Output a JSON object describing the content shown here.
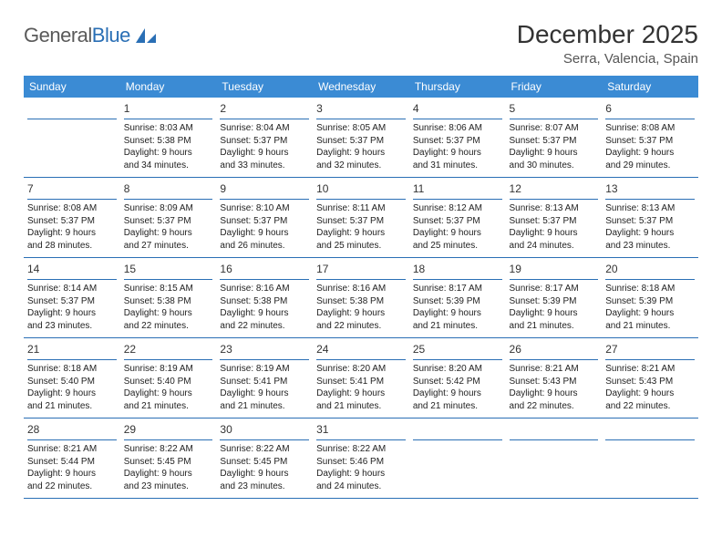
{
  "logo": {
    "text_left": "General",
    "text_right": "Blue",
    "text_color_left": "#5a5a5a",
    "text_color_right": "#2a6fb5",
    "shape_color": "#2a6fb5"
  },
  "header": {
    "month_title": "December 2025",
    "location": "Serra, Valencia, Spain"
  },
  "styling": {
    "header_bg": "#3b8bd4",
    "header_fg": "#ffffff",
    "rule_color": "#2a6fb5",
    "body_font_size": 10,
    "daynum_font_size": 12,
    "th_font_size": 12,
    "title_font_size": 28,
    "location_font_size": 15
  },
  "day_headers": [
    "Sunday",
    "Monday",
    "Tuesday",
    "Wednesday",
    "Thursday",
    "Friday",
    "Saturday"
  ],
  "weeks": [
    [
      {
        "n": "",
        "lines": []
      },
      {
        "n": "1",
        "lines": [
          "Sunrise: 8:03 AM",
          "Sunset: 5:38 PM",
          "Daylight: 9 hours",
          "and 34 minutes."
        ]
      },
      {
        "n": "2",
        "lines": [
          "Sunrise: 8:04 AM",
          "Sunset: 5:37 PM",
          "Daylight: 9 hours",
          "and 33 minutes."
        ]
      },
      {
        "n": "3",
        "lines": [
          "Sunrise: 8:05 AM",
          "Sunset: 5:37 PM",
          "Daylight: 9 hours",
          "and 32 minutes."
        ]
      },
      {
        "n": "4",
        "lines": [
          "Sunrise: 8:06 AM",
          "Sunset: 5:37 PM",
          "Daylight: 9 hours",
          "and 31 minutes."
        ]
      },
      {
        "n": "5",
        "lines": [
          "Sunrise: 8:07 AM",
          "Sunset: 5:37 PM",
          "Daylight: 9 hours",
          "and 30 minutes."
        ]
      },
      {
        "n": "6",
        "lines": [
          "Sunrise: 8:08 AM",
          "Sunset: 5:37 PM",
          "Daylight: 9 hours",
          "and 29 minutes."
        ]
      }
    ],
    [
      {
        "n": "7",
        "lines": [
          "Sunrise: 8:08 AM",
          "Sunset: 5:37 PM",
          "Daylight: 9 hours",
          "and 28 minutes."
        ]
      },
      {
        "n": "8",
        "lines": [
          "Sunrise: 8:09 AM",
          "Sunset: 5:37 PM",
          "Daylight: 9 hours",
          "and 27 minutes."
        ]
      },
      {
        "n": "9",
        "lines": [
          "Sunrise: 8:10 AM",
          "Sunset: 5:37 PM",
          "Daylight: 9 hours",
          "and 26 minutes."
        ]
      },
      {
        "n": "10",
        "lines": [
          "Sunrise: 8:11 AM",
          "Sunset: 5:37 PM",
          "Daylight: 9 hours",
          "and 25 minutes."
        ]
      },
      {
        "n": "11",
        "lines": [
          "Sunrise: 8:12 AM",
          "Sunset: 5:37 PM",
          "Daylight: 9 hours",
          "and 25 minutes."
        ]
      },
      {
        "n": "12",
        "lines": [
          "Sunrise: 8:13 AM",
          "Sunset: 5:37 PM",
          "Daylight: 9 hours",
          "and 24 minutes."
        ]
      },
      {
        "n": "13",
        "lines": [
          "Sunrise: 8:13 AM",
          "Sunset: 5:37 PM",
          "Daylight: 9 hours",
          "and 23 minutes."
        ]
      }
    ],
    [
      {
        "n": "14",
        "lines": [
          "Sunrise: 8:14 AM",
          "Sunset: 5:37 PM",
          "Daylight: 9 hours",
          "and 23 minutes."
        ]
      },
      {
        "n": "15",
        "lines": [
          "Sunrise: 8:15 AM",
          "Sunset: 5:38 PM",
          "Daylight: 9 hours",
          "and 22 minutes."
        ]
      },
      {
        "n": "16",
        "lines": [
          "Sunrise: 8:16 AM",
          "Sunset: 5:38 PM",
          "Daylight: 9 hours",
          "and 22 minutes."
        ]
      },
      {
        "n": "17",
        "lines": [
          "Sunrise: 8:16 AM",
          "Sunset: 5:38 PM",
          "Daylight: 9 hours",
          "and 22 minutes."
        ]
      },
      {
        "n": "18",
        "lines": [
          "Sunrise: 8:17 AM",
          "Sunset: 5:39 PM",
          "Daylight: 9 hours",
          "and 21 minutes."
        ]
      },
      {
        "n": "19",
        "lines": [
          "Sunrise: 8:17 AM",
          "Sunset: 5:39 PM",
          "Daylight: 9 hours",
          "and 21 minutes."
        ]
      },
      {
        "n": "20",
        "lines": [
          "Sunrise: 8:18 AM",
          "Sunset: 5:39 PM",
          "Daylight: 9 hours",
          "and 21 minutes."
        ]
      }
    ],
    [
      {
        "n": "21",
        "lines": [
          "Sunrise: 8:18 AM",
          "Sunset: 5:40 PM",
          "Daylight: 9 hours",
          "and 21 minutes."
        ]
      },
      {
        "n": "22",
        "lines": [
          "Sunrise: 8:19 AM",
          "Sunset: 5:40 PM",
          "Daylight: 9 hours",
          "and 21 minutes."
        ]
      },
      {
        "n": "23",
        "lines": [
          "Sunrise: 8:19 AM",
          "Sunset: 5:41 PM",
          "Daylight: 9 hours",
          "and 21 minutes."
        ]
      },
      {
        "n": "24",
        "lines": [
          "Sunrise: 8:20 AM",
          "Sunset: 5:41 PM",
          "Daylight: 9 hours",
          "and 21 minutes."
        ]
      },
      {
        "n": "25",
        "lines": [
          "Sunrise: 8:20 AM",
          "Sunset: 5:42 PM",
          "Daylight: 9 hours",
          "and 21 minutes."
        ]
      },
      {
        "n": "26",
        "lines": [
          "Sunrise: 8:21 AM",
          "Sunset: 5:43 PM",
          "Daylight: 9 hours",
          "and 22 minutes."
        ]
      },
      {
        "n": "27",
        "lines": [
          "Sunrise: 8:21 AM",
          "Sunset: 5:43 PM",
          "Daylight: 9 hours",
          "and 22 minutes."
        ]
      }
    ],
    [
      {
        "n": "28",
        "lines": [
          "Sunrise: 8:21 AM",
          "Sunset: 5:44 PM",
          "Daylight: 9 hours",
          "and 22 minutes."
        ]
      },
      {
        "n": "29",
        "lines": [
          "Sunrise: 8:22 AM",
          "Sunset: 5:45 PM",
          "Daylight: 9 hours",
          "and 23 minutes."
        ]
      },
      {
        "n": "30",
        "lines": [
          "Sunrise: 8:22 AM",
          "Sunset: 5:45 PM",
          "Daylight: 9 hours",
          "and 23 minutes."
        ]
      },
      {
        "n": "31",
        "lines": [
          "Sunrise: 8:22 AM",
          "Sunset: 5:46 PM",
          "Daylight: 9 hours",
          "and 24 minutes."
        ]
      },
      {
        "n": "",
        "lines": []
      },
      {
        "n": "",
        "lines": []
      },
      {
        "n": "",
        "lines": []
      }
    ]
  ]
}
